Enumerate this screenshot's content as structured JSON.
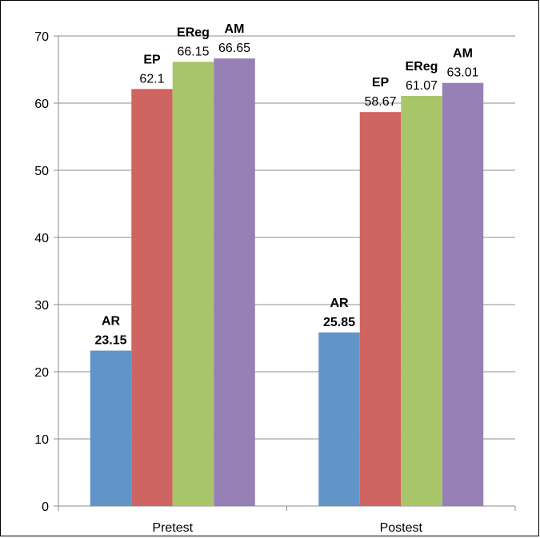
{
  "chart_data": {
    "type": "bar",
    "title": "",
    "xlabel": "",
    "ylabel": "",
    "ylim": [
      0,
      70
    ],
    "yticks": [
      0,
      10,
      20,
      30,
      40,
      50,
      60,
      70
    ],
    "grid": true,
    "legend": "none",
    "categories": [
      "Pretest",
      "Postest"
    ],
    "series": [
      {
        "name": "AR",
        "color": "#6194C9",
        "values": [
          23.15,
          25.85
        ],
        "value_labels": [
          "23.15",
          "25.85"
        ],
        "label_bold": true
      },
      {
        "name": "EP",
        "color": "#CF6560",
        "values": [
          62.1,
          58.67
        ],
        "value_labels": [
          "62.1",
          "58.67"
        ],
        "label_bold": false
      },
      {
        "name": "EReg",
        "color": "#A9C56A",
        "values": [
          66.15,
          61.07
        ],
        "value_labels": [
          "66.15",
          "61.07"
        ],
        "label_bold": false
      },
      {
        "name": "AM",
        "color": "#9780B5",
        "values": [
          66.65,
          63.01
        ],
        "value_labels": [
          "66.65",
          "63.01"
        ],
        "label_bold": false
      }
    ]
  }
}
